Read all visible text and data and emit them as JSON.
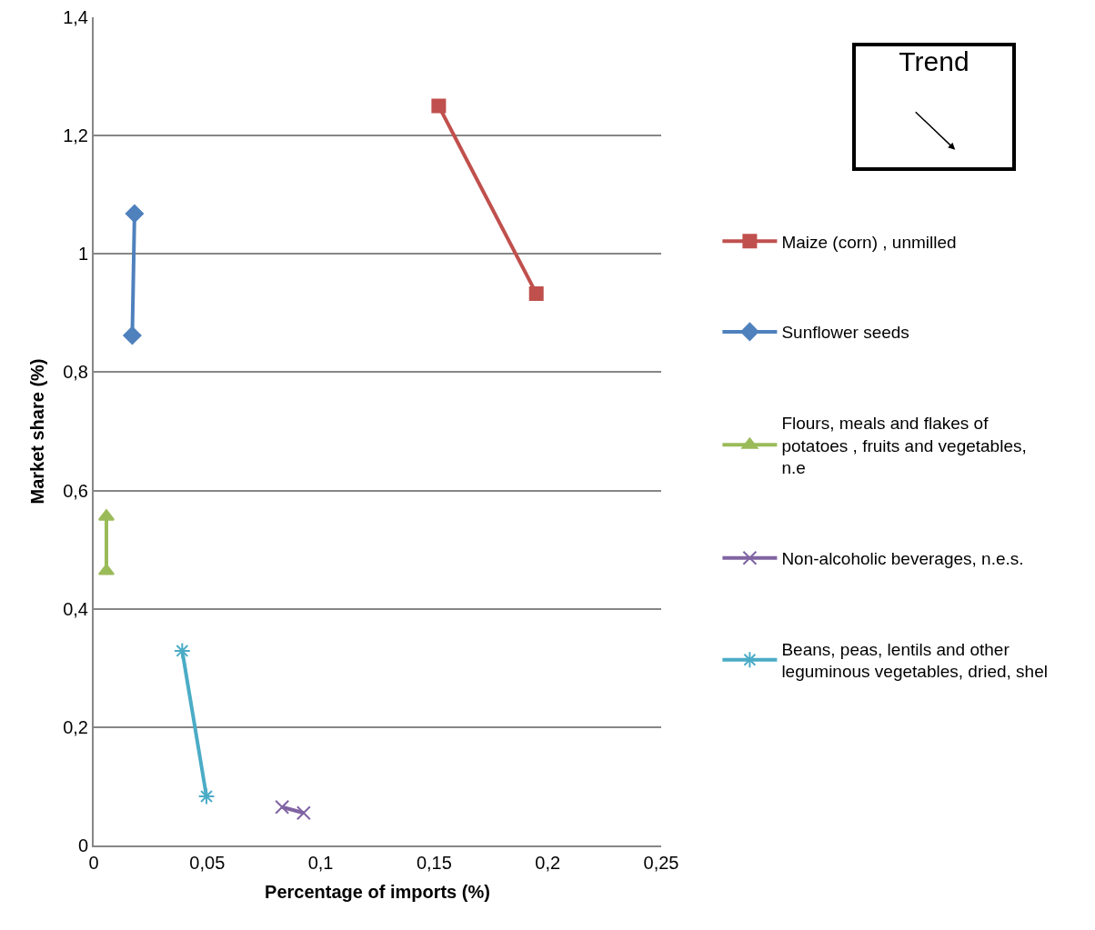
{
  "chart_data": {
    "type": "line",
    "xlabel": "Percentage of imports (%)",
    "ylabel": "Market share (%)",
    "xlim": [
      0,
      0.25
    ],
    "xticks": [
      {
        "value": 0,
        "label": "0"
      },
      {
        "value": 0.05,
        "label": "0,05"
      },
      {
        "value": 0.1,
        "label": "0,1"
      },
      {
        "value": 0.15,
        "label": "0,15"
      },
      {
        "value": 0.2,
        "label": "0,2"
      },
      {
        "value": 0.25,
        "label": "0,25"
      }
    ],
    "ylim": [
      0,
      1.4
    ],
    "yticks": [
      {
        "value": 0,
        "label": "0"
      },
      {
        "value": 0.2,
        "label": "0,2"
      },
      {
        "value": 0.4,
        "label": "0,4"
      },
      {
        "value": 0.6,
        "label": "0,6"
      },
      {
        "value": 0.8,
        "label": "0,8"
      },
      {
        "value": 1,
        "label": "1"
      },
      {
        "value": 1.2,
        "label": "1,2"
      },
      {
        "value": 1.4,
        "label": "1,4"
      }
    ],
    "grid": "y",
    "legend": "right",
    "annotations": [
      "Trend"
    ],
    "series": [
      {
        "name": "Maize (corn) , unmilled",
        "color": "#c0504d",
        "marker": "square",
        "x": [
          0.152,
          0.195
        ],
        "values": [
          1.25,
          0.933
        ]
      },
      {
        "name": "Sunflower seeds",
        "color": "#4f81bd",
        "marker": "diamond",
        "x": [
          0.018,
          0.017
        ],
        "values": [
          1.068,
          0.862
        ]
      },
      {
        "name": "Flours, meals and flakes of potatoes , fruits and vegetables, n.e",
        "color": "#9bbb59",
        "marker": "triangle",
        "x": [
          0.0056,
          0.0056
        ],
        "values": [
          0.464,
          0.556
        ]
      },
      {
        "name": "Non-alcoholic beverages, n.e.s.",
        "color": "#8064a2",
        "marker": "cross",
        "x": [
          0.083,
          0.0925
        ],
        "values": [
          0.065,
          0.055
        ]
      },
      {
        "name": "Beans, peas, lentils and other leguminous vegetables, dried, shel",
        "color": "#4bacc6",
        "marker": "cross",
        "x": [
          0.039,
          0.0497
        ],
        "values": [
          0.329,
          0.083
        ]
      }
    ]
  }
}
